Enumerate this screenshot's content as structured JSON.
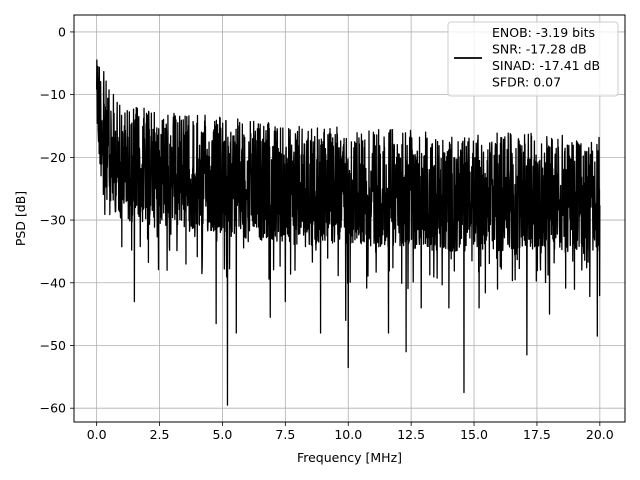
{
  "chart_data": {
    "type": "line",
    "title": "",
    "xlabel": "Frequency [MHz]",
    "ylabel": "PSD [dB]",
    "xlim": [
      -0.9,
      21.0
    ],
    "ylim": [
      -62.2,
      2.7
    ],
    "xticks": [
      0.0,
      2.5,
      5.0,
      7.5,
      10.0,
      12.5,
      15.0,
      17.5,
      20.0
    ],
    "xtick_labels": [
      "0.0",
      "2.5",
      "5.0",
      "7.5",
      "10.0",
      "12.5",
      "15.0",
      "17.5",
      "20.0"
    ],
    "yticks": [
      0,
      -10,
      -20,
      -30,
      -40,
      -50,
      -60
    ],
    "ytick_labels": [
      "0",
      "−10",
      "−20",
      "−30",
      "−40",
      "−50",
      "−60"
    ],
    "grid": true,
    "legend_position": "top-right",
    "legend": [
      "ENOB: -3.19 bits",
      "SNR: -17.28 dB",
      "SINAD: -17.41 dB",
      "SFDR: 0.07"
    ],
    "series": [
      {
        "color": "#000000",
        "x_start": 0.0,
        "x_end": 20.0,
        "notes": "noisy PSD, starts near 0 dB at DC",
        "max_envelope": [
          [
            0.0,
            0.0
          ],
          [
            0.2,
            -5
          ],
          [
            0.5,
            -9
          ],
          [
            1.0,
            -11
          ],
          [
            2.0,
            -12
          ],
          [
            4.0,
            -13
          ],
          [
            6.0,
            -14
          ],
          [
            8.0,
            -15
          ],
          [
            10.0,
            -15
          ],
          [
            12.0,
            -15.5
          ],
          [
            14.0,
            -16
          ],
          [
            16.0,
            -16
          ],
          [
            18.0,
            -16
          ],
          [
            20.0,
            -16.5
          ]
        ],
        "notable_dips": [
          [
            1.5,
            -43
          ],
          [
            2.8,
            -38
          ],
          [
            4.2,
            -36
          ],
          [
            4.75,
            -46.5
          ],
          [
            5.2,
            -59.5
          ],
          [
            5.55,
            -48
          ],
          [
            6.9,
            -45.5
          ],
          [
            7.5,
            -43
          ],
          [
            8.9,
            -48
          ],
          [
            9.9,
            -46
          ],
          [
            10.0,
            -53.5
          ],
          [
            11.6,
            -48
          ],
          [
            12.3,
            -51
          ],
          [
            12.9,
            -44
          ],
          [
            14.0,
            -44
          ],
          [
            14.6,
            -57.5
          ],
          [
            15.2,
            -44
          ],
          [
            17.1,
            -51.5
          ],
          [
            18.0,
            -45
          ],
          [
            19.9,
            -48.5
          ]
        ]
      }
    ]
  }
}
